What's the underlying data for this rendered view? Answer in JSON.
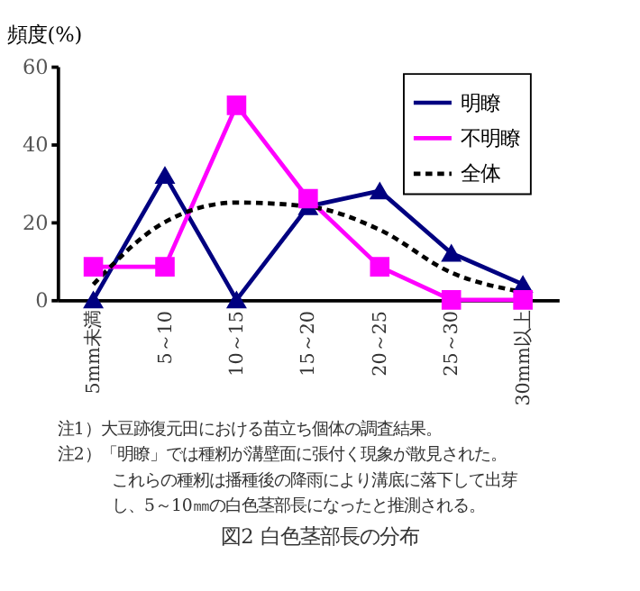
{
  "chart_data": {
    "type": "line",
    "title": "図2  白色茎部長の分布",
    "ylabel": "頻度(%)",
    "categories": [
      "5mm未満",
      "5～10",
      "10～15",
      "15～20",
      "20～25",
      "25～30",
      "30mm以上"
    ],
    "series": [
      {
        "name": "明瞭",
        "color": "#000080",
        "marker": "triangle",
        "line_style": "solid",
        "values": [
          0,
          32,
          0,
          24,
          28,
          12,
          4
        ]
      },
      {
        "name": "不明瞭",
        "color": "#ff00ff",
        "marker": "square",
        "line_style": "solid",
        "values": [
          8.5,
          8.5,
          50,
          26,
          8.5,
          0,
          0
        ]
      },
      {
        "name": "全体",
        "color": "#000000",
        "marker": "none",
        "line_style": "dashed",
        "values": [
          4,
          20,
          25,
          24,
          18,
          7,
          2
        ]
      }
    ],
    "ylim": [
      0,
      60
    ],
    "yticks": [
      0,
      20,
      40,
      60
    ],
    "grid": false,
    "legend": "top right",
    "annotations": [
      "注1）大豆跡復元田における苗立ち個体の調査結果。",
      "注2）「明瞭」では種籾が溝壁面に張付く現象が散見された。これらの種籾は播種後の降雨により溝底に落下して出芽し、5～10㎜の白色茎部長になったと推測される。"
    ]
  }
}
